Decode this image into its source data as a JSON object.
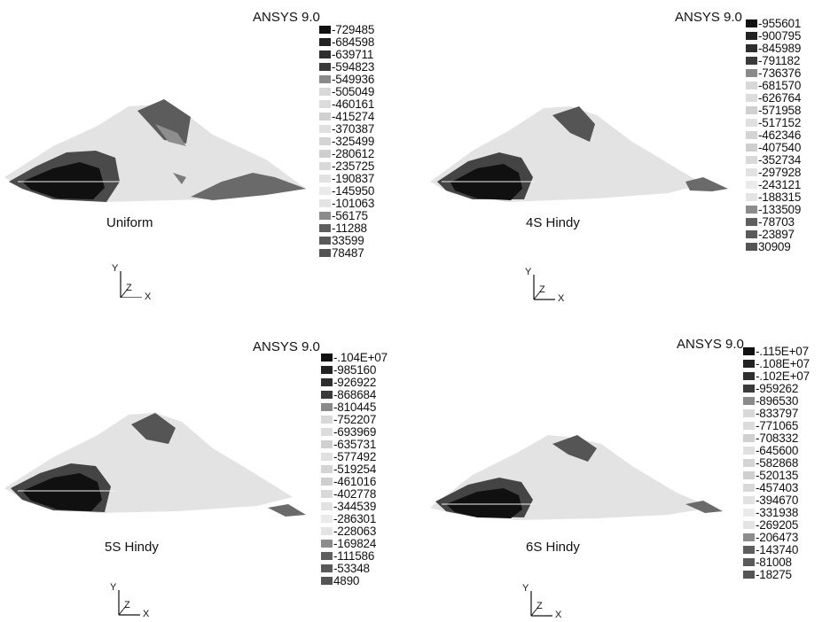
{
  "panels": [
    {
      "brand": "ANSYS 9.0",
      "caption": "Uniform",
      "legend": [
        "-729485",
        "-684598",
        "-639711",
        "-594823",
        "-549936",
        "-505049",
        "-460161",
        "-415274",
        "-370387",
        "-325499",
        "-280612",
        "-235725",
        "-190837",
        "-145950",
        "-101063",
        "-56175",
        "-11288",
        "33599",
        "78487"
      ]
    },
    {
      "brand": "ANSYS 9.0",
      "caption": "4S Hindy",
      "legend": [
        "-955601",
        "-900795",
        "-845989",
        "-791182",
        "-736376",
        "-681570",
        "-626764",
        "-571958",
        "-517152",
        "-462346",
        "-407540",
        "-352734",
        "-297928",
        "-243121",
        "-188315",
        "-133509",
        "-78703",
        "-23897",
        "30909"
      ]
    },
    {
      "brand": "ANSYS 9.0",
      "caption": "5S Hindy",
      "legend": [
        "-.104E+07",
        "-985160",
        "-926922",
        "-868684",
        "-810445",
        "-752207",
        "-693969",
        "-635731",
        "-577492",
        "-519254",
        "-461016",
        "-402778",
        "-344539",
        "-286301",
        "-228063",
        "-169824",
        "-111586",
        "-53348",
        "4890"
      ]
    },
    {
      "brand": "ANSYS 9.0",
      "caption": "6S Hindy",
      "legend": [
        "-.115E+07",
        "-.108E+07",
        "-.102E+07",
        "-959262",
        "-896530",
        "-833797",
        "-771065",
        "-708332",
        "-645600",
        "-582868",
        "-520135",
        "-457403",
        "-394670",
        "-331938",
        "-269205",
        "-206473",
        "-143740",
        "-81008",
        "-18275"
      ]
    }
  ],
  "legend_colors": [
    "#111111",
    "#222222",
    "#2e2e2e",
    "#3a3a3a",
    "#8a8a8a",
    "#d8d8d8",
    "#dcdcdc",
    "#d0d0d0",
    "#e0e0e0",
    "#d4d4d4",
    "#cfcfcf",
    "#d9d9d9",
    "#e2e2e2",
    "#eaeaea",
    "#e4e4e4",
    "#8c8c8c",
    "#5e5e5e",
    "#5a5a5a",
    "#555555"
  ],
  "triad": {
    "y": "Y",
    "z": "Z",
    "x": "X"
  }
}
